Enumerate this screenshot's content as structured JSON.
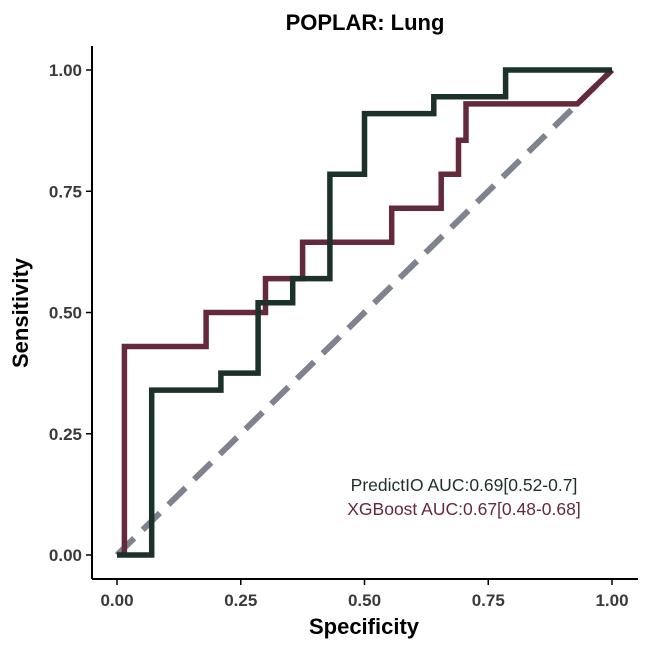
{
  "chart_data": {
    "type": "line",
    "title": "POPLAR: Lung",
    "xlabel": "Specificity",
    "ylabel": "Sensitivity",
    "xlim": [
      0,
      1
    ],
    "ylim": [
      0,
      1
    ],
    "x_ticks": [
      "0.00",
      "0.25",
      "0.50",
      "0.75",
      "1.00"
    ],
    "y_ticks": [
      "0.00",
      "0.25",
      "0.50",
      "0.75",
      "1.00"
    ],
    "x_tick_values": [
      0,
      0.25,
      0.5,
      0.75,
      1.0
    ],
    "y_tick_values": [
      0,
      0.25,
      0.5,
      0.75,
      1.0
    ],
    "grid": false,
    "legend_position": "bottom-right",
    "reference_line": {
      "style": "dashed",
      "color": "#7f828f",
      "x": [
        0,
        1
      ],
      "y": [
        0,
        1
      ]
    },
    "series": [
      {
        "label": "PredictIO AUC:0.69[0.52-0.7]",
        "color": "#1c3129",
        "x": [
          0,
          0.07,
          0.07,
          0.21,
          0.21,
          0.285,
          0.285,
          0.355,
          0.355,
          0.43,
          0.43,
          0.5,
          0.5,
          0.64,
          0.64,
          0.785,
          0.785,
          1.0
        ],
        "y": [
          0,
          0,
          0.34,
          0.34,
          0.375,
          0.375,
          0.52,
          0.52,
          0.57,
          0.57,
          0.785,
          0.785,
          0.91,
          0.91,
          0.945,
          0.945,
          1.0,
          1.0
        ]
      },
      {
        "label": "XGBoost AUC:0.67[0.48-0.68]",
        "color": "#642a3c",
        "x": [
          0.015,
          0.015,
          0.18,
          0.18,
          0.28,
          0.28,
          0.3,
          0.3,
          0.375,
          0.375,
          0.555,
          0.555,
          0.655,
          0.655,
          0.69,
          0.69,
          0.705,
          0.705,
          0.93,
          1.0
        ],
        "y": [
          0,
          0.43,
          0.43,
          0.5,
          0.5,
          0.5,
          0.5,
          0.57,
          0.57,
          0.645,
          0.645,
          0.715,
          0.715,
          0.785,
          0.785,
          0.855,
          0.855,
          0.93,
          0.93,
          1.0
        ]
      }
    ]
  }
}
